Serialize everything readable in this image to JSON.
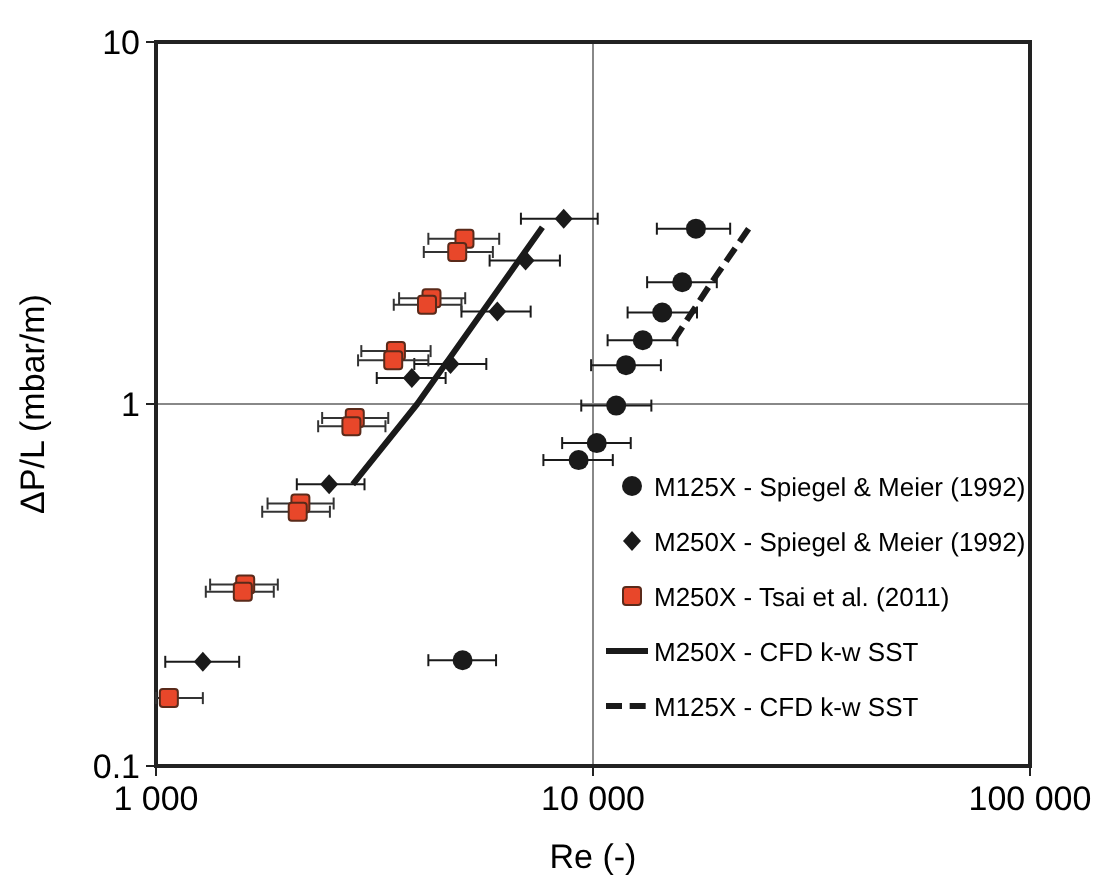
{
  "chart_data": {
    "type": "scatter",
    "xlabel": "Re (-)",
    "ylabel": "ΔP/L (mbar/m)",
    "log": "xy",
    "grid": true,
    "legend": "bottom right",
    "xlim": [
      1000,
      100000
    ],
    "xticks": [
      {
        "value": 1000,
        "label": "1 000"
      },
      {
        "value": 10000,
        "label": "10 000"
      },
      {
        "value": 100000,
        "label": "100 000"
      }
    ],
    "ylim": [
      0.1,
      10
    ],
    "yticks": [
      0.1,
      1,
      10
    ],
    "series": [
      {
        "name": "M125X - Spiegel & Meier (1992)",
        "marker": "circle",
        "color": "#1a1a1a",
        "x": [
          17200,
          16000,
          14400,
          13000,
          11900,
          11300,
          10200,
          9270,
          5030
        ],
        "values": [
          3.05,
          2.17,
          1.79,
          1.5,
          1.28,
          0.99,
          0.78,
          0.7,
          0.196
        ],
        "xerrors": [
          [
            14000,
            20600
          ],
          [
            13300,
            19200
          ],
          [
            12000,
            17300
          ],
          [
            10800,
            15600
          ],
          [
            9900,
            14300
          ],
          [
            9400,
            13600
          ],
          [
            8500,
            12200
          ],
          [
            7700,
            11100
          ],
          [
            4200,
            6000
          ]
        ]
      },
      {
        "name": "M250X - Spiegel & Meier (1992)",
        "marker": "diamond",
        "color": "#1a1a1a",
        "x": [
          8570,
          7010,
          6040,
          4720,
          3850,
          2490,
          1280
        ],
        "values": [
          3.25,
          2.49,
          1.8,
          1.29,
          1.18,
          0.6,
          0.194
        ],
        "xerrors": [
          [
            6840,
            10250
          ],
          [
            5800,
            8400
          ],
          [
            5000,
            7200
          ],
          [
            3900,
            5700
          ],
          [
            3200,
            4600
          ],
          [
            2100,
            3000
          ],
          [
            1050,
            1550
          ]
        ]
      },
      {
        "name": "M250X - Tsai et al. (2011)",
        "marker": "square",
        "color": "#e8472a",
        "x": [
          5080,
          4890,
          4270,
          4170,
          3540,
          3490,
          2850,
          2800,
          2140,
          2110,
          1600,
          1580,
          1070
        ],
        "values": [
          2.86,
          2.63,
          1.96,
          1.88,
          1.4,
          1.32,
          0.915,
          0.868,
          0.531,
          0.504,
          0.317,
          0.303,
          0.154
        ],
        "xerrors": [
          [
            4200,
            6100
          ],
          [
            4100,
            5900
          ],
          [
            3600,
            5100
          ],
          [
            3500,
            5000
          ],
          [
            2950,
            4250
          ],
          [
            2900,
            4200
          ],
          [
            2400,
            3400
          ],
          [
            2350,
            3350
          ],
          [
            1800,
            2550
          ],
          [
            1750,
            2500
          ],
          [
            1330,
            1900
          ],
          [
            1300,
            1860
          ],
          [
            1000,
            1280
          ]
        ]
      },
      {
        "name": "M250X - CFD k-w SST",
        "type": "line",
        "marker": "none",
        "line_style": "solid",
        "color": "#1a1a1a",
        "x": [
          2820,
          3960,
          7660
        ],
        "values": [
          0.6,
          1.0,
          3.08
        ]
      },
      {
        "name": "M125X - CFD k-w SST",
        "type": "line",
        "marker": "none",
        "line_style": "dashed",
        "color": "#1a1a1a",
        "x": [
          15300,
          18600,
          22700
        ],
        "values": [
          1.5,
          2.15,
          3.05
        ]
      }
    ]
  }
}
